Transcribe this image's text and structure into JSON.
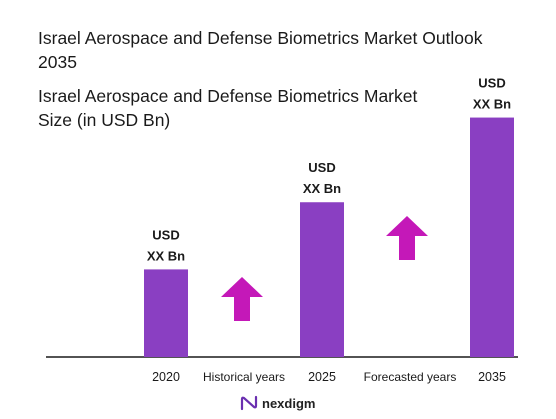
{
  "chart_data": {
    "type": "bar",
    "title": "Israel Aerospace and Defense Biometrics Market Outlook 2035",
    "subtitle": "Israel Aerospace and Defense Biometrics Market Size (in USD Bn)",
    "categories": [
      "2020",
      "2025",
      "2035"
    ],
    "values": [
      0.3,
      0.53,
      0.82
    ],
    "value_labels": [
      "USD XX Bn",
      "USD XX Bn",
      "USD XX Bn"
    ],
    "ylim": [
      0,
      1
    ],
    "grid": false,
    "segments": [
      "Historical years",
      "Forecasted years"
    ],
    "bar_color": "#8a3fc2",
    "arrow_color": "#c418b8"
  },
  "brand": {
    "name": "nexdigm"
  }
}
